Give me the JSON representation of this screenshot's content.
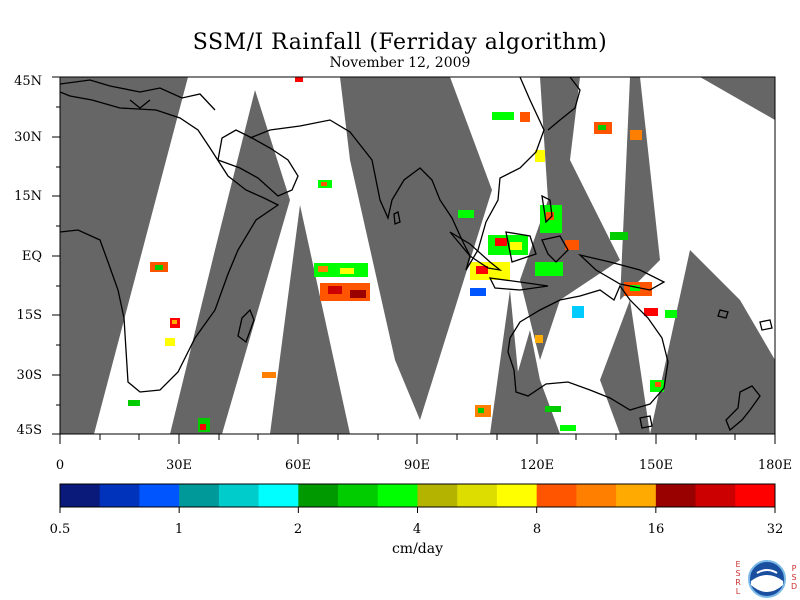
{
  "title": "SSM/I Rainfall (Ferriday algorithm)",
  "subtitle": "November 12, 2009",
  "map": {
    "lat_labels": [
      "45N",
      "30N",
      "15N",
      "EQ",
      "15S",
      "30S",
      "45S"
    ],
    "lon_labels": [
      "0",
      "30E",
      "60E",
      "90E",
      "120E",
      "150E",
      "180E"
    ],
    "lat_range": [
      -45,
      45
    ],
    "lon_range": [
      0,
      180
    ],
    "no_data_color": "#666666",
    "land_outline_color": "#000000"
  },
  "colorbar": {
    "colors": [
      "#0a1a7a",
      "#0033bb",
      "#0055ff",
      "#009999",
      "#00cccc",
      "#00ffff",
      "#009900",
      "#00cc00",
      "#00ff00",
      "#b3b300",
      "#dddd00",
      "#ffff00",
      "#ff5500",
      "#ff7f00",
      "#ffaa00",
      "#990000",
      "#cc0000",
      "#ff0000"
    ],
    "tick_labels": [
      "0.5",
      "1",
      "2",
      "4",
      "8",
      "16",
      "32"
    ],
    "units": "cm/day"
  },
  "logo": {
    "left_letters": [
      "E",
      "S",
      "R",
      "L"
    ],
    "right_letters": [
      "P",
      "S",
      "D"
    ],
    "text": "NOAA"
  }
}
